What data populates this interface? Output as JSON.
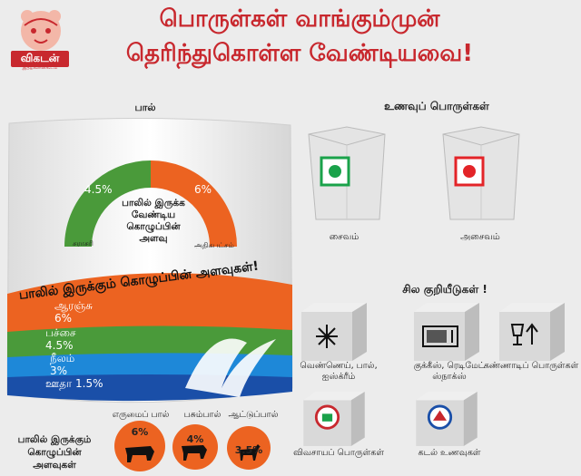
{
  "header": {
    "logo_text": "விகடன்",
    "logo_sub": "இதழ்களின்கூடம்",
    "title_line1": "பொருள்கள் வாங்கும்முன்",
    "title_line2": "தெரிந்துகொள்ள வேண்டியவை!"
  },
  "milk": {
    "label": "பால்",
    "gauge": {
      "left_value": "4.5%",
      "right_value": "6%",
      "center_text": "பாலில் இருக்க வேண்டிய கொழுப்பின் அளவு",
      "left_label": "சராசரி",
      "right_label": "அதிகபட்சம்",
      "average_percent": 4.5,
      "max_percent": 6
    },
    "fat_title": "பாலில் இருக்கும் கொழுப்பின் அளவுகள்!",
    "bands": [
      {
        "name": "ஆரஞ்சு",
        "value": "6%",
        "color": "#ec6321"
      },
      {
        "name": "பச்சை",
        "value": "4.5%",
        "color": "#4a9a3a"
      },
      {
        "name": "நீலம்",
        "value": "3%",
        "color": "#1e88d8"
      },
      {
        "name": "ஊதா",
        "value": "1.5%",
        "color": "#1a4fa8"
      }
    ],
    "fat_levels_label": "பாலில் இருக்கும் கொழுப்பின் அளவுகள்",
    "animals": [
      {
        "name": "எருமைப் பால்",
        "value": "6%",
        "icon": "buffalo-icon"
      },
      {
        "name": "பசும்பால்",
        "value": "4%",
        "icon": "cow-icon"
      },
      {
        "name": "ஆட்டுப்பால்",
        "value": "3.5%",
        "icon": "goat-icon"
      }
    ]
  },
  "food": {
    "title": "உணவுப் பொருள்கள்",
    "veg_label": "சைவம்",
    "nonveg_label": "அசைவம்",
    "veg_color": "#1aa24a",
    "nonveg_color": "#e32428"
  },
  "signs": {
    "title": "சில குறியீடுகள் !",
    "items": [
      {
        "label": "வெண்ணெய், பால், ஐஸ்க்ரீம்",
        "icon": "snowflake-icon"
      },
      {
        "label": "குக்கீஸ், ரெடிமேட் ஸ்நாக்ஸ்",
        "icon": "microwave-icon"
      },
      {
        "label": "கண்ணாடிப் பொருள்கள்",
        "icon": "fragile-glass-icon"
      },
      {
        "label": "விவசாயப் பொருள்கள்",
        "icon": "agriculture-seal-icon"
      },
      {
        "label": "கடல் உணவுகள்",
        "icon": "seafood-seal-icon"
      }
    ]
  }
}
